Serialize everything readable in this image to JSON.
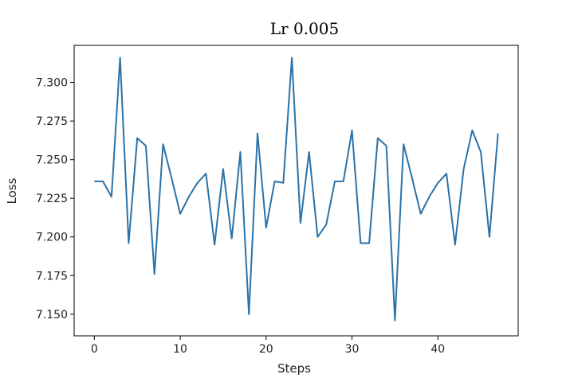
{
  "chart_data": {
    "type": "line",
    "title": "Lr 0.005",
    "xlabel": "Steps",
    "ylabel": "Loss",
    "xlim": [
      -2.35,
      49.35
    ],
    "ylim": [
      7.136,
      7.324
    ],
    "xticks": [
      0,
      10,
      20,
      30,
      40
    ],
    "yticks": [
      7.15,
      7.175,
      7.2,
      7.225,
      7.25,
      7.275,
      7.3
    ],
    "ytick_labels": [
      "7.150",
      "7.175",
      "7.200",
      "7.225",
      "7.250",
      "7.275",
      "7.300"
    ],
    "grid": false,
    "line_color": "#2a72a8",
    "series": [
      {
        "x": [
          0,
          1,
          2,
          3,
          4,
          5,
          6,
          7,
          8,
          9,
          10,
          11,
          12,
          13,
          14,
          15,
          16,
          17,
          18,
          19,
          20,
          21,
          22,
          23,
          24,
          25,
          26,
          27,
          28,
          29,
          30,
          31,
          32,
          33,
          34,
          35,
          36,
          37,
          38,
          39,
          40,
          41,
          42,
          43,
          44,
          45,
          46,
          47
        ],
        "values": [
          7.236,
          7.236,
          7.226,
          7.316,
          7.196,
          7.264,
          7.259,
          7.176,
          7.26,
          7.238,
          7.215,
          7.226,
          7.235,
          7.241,
          7.195,
          7.244,
          7.199,
          7.255,
          7.15,
          7.267,
          7.206,
          7.236,
          7.235,
          7.316,
          7.209,
          7.255,
          7.2,
          7.208,
          7.236,
          7.236,
          7.269,
          7.196,
          7.196,
          7.264,
          7.259,
          7.146,
          7.26,
          7.238,
          7.215,
          7.226,
          7.235,
          7.241,
          7.195,
          7.244,
          7.269,
          7.255,
          7.2,
          7.267
        ]
      }
    ]
  }
}
